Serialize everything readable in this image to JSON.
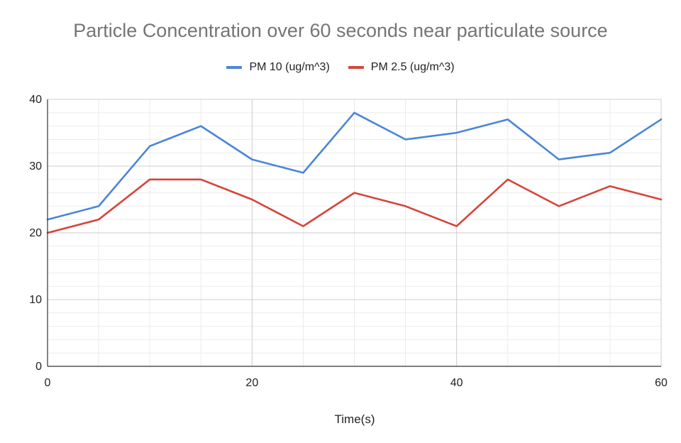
{
  "chart_data": {
    "type": "line",
    "title": "Particle Concentration over 60 seconds near particulate source",
    "xlabel": "Time(s)",
    "ylabel": "",
    "xlim": [
      0,
      60
    ],
    "ylim": [
      0,
      40
    ],
    "x_ticks": [
      0,
      20,
      40,
      60
    ],
    "y_ticks": [
      0,
      10,
      20,
      30,
      40
    ],
    "grid": true,
    "legend_position": "top",
    "x": [
      0,
      5,
      10,
      15,
      20,
      25,
      30,
      35,
      40,
      45,
      50,
      55,
      60
    ],
    "series": [
      {
        "name": "PM 10 (ug/m^3)",
        "color": "#4a86d8",
        "values": [
          22,
          24,
          33,
          36,
          31,
          29,
          38,
          34,
          35,
          37,
          31,
          32,
          37
        ]
      },
      {
        "name": "PM 2.5 (ug/m^3)",
        "color": "#d5453a",
        "values": [
          20,
          22,
          28,
          28,
          25,
          21,
          26,
          24,
          21,
          28,
          24,
          27,
          25
        ]
      }
    ]
  }
}
